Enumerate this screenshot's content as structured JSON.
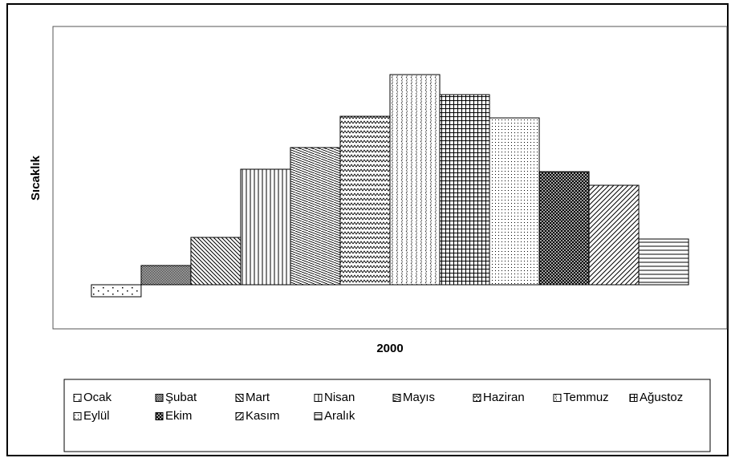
{
  "chart_data": {
    "type": "bar",
    "ylabel": "Sıcaklık",
    "xlabel": "2000",
    "categories": [
      "2000"
    ],
    "ylim": [
      -5.5,
      32.2
    ],
    "series": [
      {
        "name": "Ocak",
        "color": "#000000",
        "pattern": "sparse-dots",
        "values": [
          -1.5
        ]
      },
      {
        "name": "Şubat",
        "color": "#000000",
        "pattern": "dense-check",
        "values": [
          2.4
        ]
      },
      {
        "name": "Mart",
        "color": "#000000",
        "pattern": "diag-down",
        "values": [
          5.9
        ]
      },
      {
        "name": "Nisan",
        "color": "#000000",
        "pattern": "vertical",
        "values": [
          14.4
        ]
      },
      {
        "name": "Mayıs",
        "color": "#000000",
        "pattern": "diag-dash",
        "values": [
          17.1
        ]
      },
      {
        "name": "Haziran",
        "color": "#000000",
        "pattern": "zigzag",
        "values": [
          21.0
        ]
      },
      {
        "name": "Temmuz",
        "color": "#000000",
        "pattern": "zigzag-vertical",
        "values": [
          26.2
        ]
      },
      {
        "name": "Ağustoz",
        "color": "#000000",
        "pattern": "grid",
        "values": [
          23.7
        ]
      },
      {
        "name": "Eylül",
        "color": "#000000",
        "pattern": "fine-dots",
        "values": [
          20.8
        ]
      },
      {
        "name": "Ekim",
        "color": "#000000",
        "pattern": "crosshatch",
        "values": [
          14.1
        ]
      },
      {
        "name": "Kasım",
        "color": "#000000",
        "pattern": "diag-up",
        "values": [
          12.4
        ]
      },
      {
        "name": "Aralık",
        "color": "#000000",
        "pattern": "horizontal",
        "values": [
          5.7
        ]
      }
    ]
  }
}
